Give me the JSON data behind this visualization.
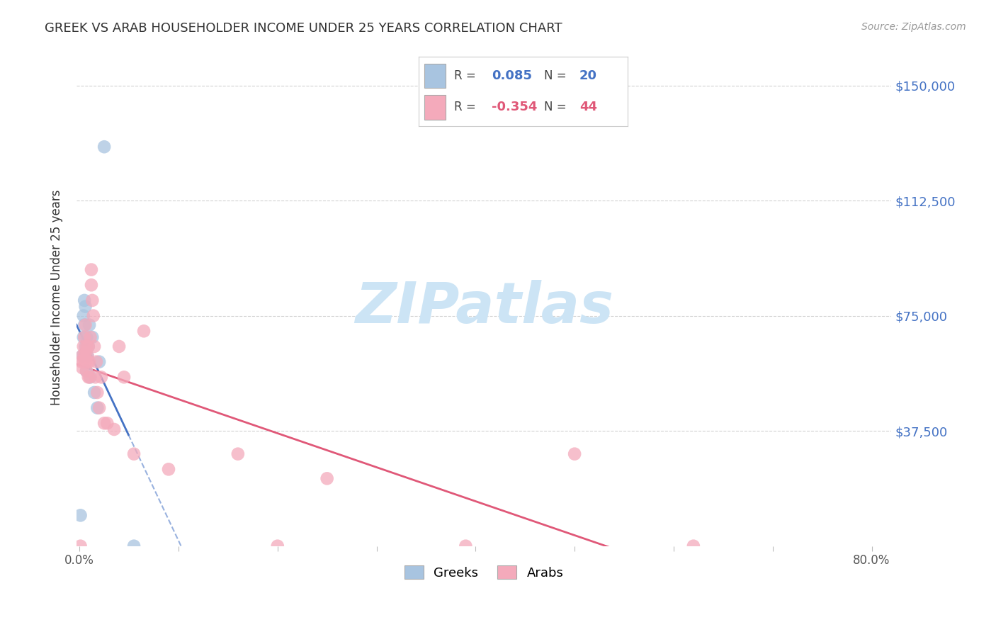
{
  "title": "GREEK VS ARAB HOUSEHOLDER INCOME UNDER 25 YEARS CORRELATION CHART",
  "source": "Source: ZipAtlas.com",
  "ylabel": "Householder Income Under 25 years",
  "ytick_labels": [
    "$150,000",
    "$112,500",
    "$75,000",
    "$37,500"
  ],
  "ytick_values": [
    150000,
    112500,
    75000,
    37500
  ],
  "ymin": 0,
  "ymax": 162000,
  "xmin": -0.003,
  "xmax": 0.82,
  "greeks_R": 0.085,
  "greeks_N": 20,
  "arabs_R": -0.354,
  "arabs_N": 44,
  "greeks_color": "#a8c4e0",
  "arabs_color": "#f4aabb",
  "greeks_line_color": "#4472c4",
  "arabs_line_color": "#e05878",
  "greeks_x": [
    0.001,
    0.003,
    0.004,
    0.004,
    0.005,
    0.005,
    0.006,
    0.006,
    0.007,
    0.007,
    0.008,
    0.009,
    0.01,
    0.011,
    0.013,
    0.015,
    0.018,
    0.02,
    0.025,
    0.055
  ],
  "greeks_y": [
    10000,
    62000,
    68000,
    75000,
    72000,
    80000,
    65000,
    78000,
    68000,
    57000,
    62000,
    65000,
    72000,
    55000,
    68000,
    50000,
    45000,
    60000,
    130000,
    0
  ],
  "arabs_x": [
    0.001,
    0.002,
    0.003,
    0.003,
    0.004,
    0.004,
    0.005,
    0.005,
    0.006,
    0.006,
    0.006,
    0.007,
    0.007,
    0.008,
    0.008,
    0.009,
    0.009,
    0.01,
    0.01,
    0.011,
    0.012,
    0.012,
    0.013,
    0.014,
    0.015,
    0.016,
    0.017,
    0.018,
    0.02,
    0.022,
    0.025,
    0.028,
    0.035,
    0.04,
    0.045,
    0.055,
    0.065,
    0.09,
    0.16,
    0.25,
    0.39,
    0.5,
    0.62,
    0.2
  ],
  "arabs_y": [
    0,
    60000,
    58000,
    62000,
    60000,
    65000,
    62000,
    68000,
    60000,
    63000,
    72000,
    57000,
    65000,
    60000,
    62000,
    55000,
    65000,
    60000,
    55000,
    68000,
    85000,
    90000,
    80000,
    75000,
    65000,
    55000,
    60000,
    50000,
    45000,
    55000,
    40000,
    40000,
    38000,
    65000,
    55000,
    30000,
    70000,
    25000,
    30000,
    22000,
    0,
    30000,
    0,
    0
  ],
  "watermark_text": "ZIPatlas",
  "watermark_color": "#cce4f5",
  "background_color": "#ffffff",
  "grid_color": "#cccccc"
}
